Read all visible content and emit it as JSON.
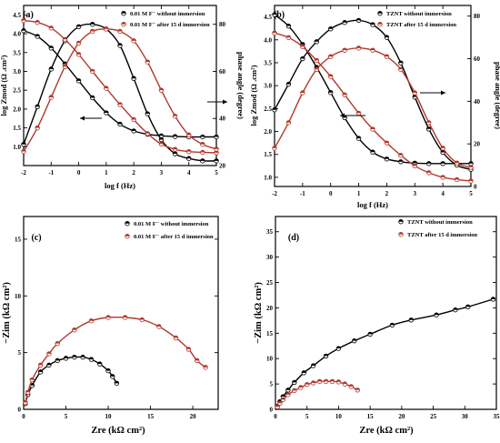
{
  "chart_data": [
    {
      "type": "line",
      "panel_label": "(a)",
      "xlabel": "log f (Hz)",
      "ylabel": "log Zmod (Ω .cm²)",
      "ylabel_right": "phase angle (degree)",
      "xlim": [
        -2,
        5
      ],
      "ylim": [
        0.5,
        4.75
      ],
      "ylim_right": [
        20,
        88
      ],
      "xticks": [
        "-2",
        "-1",
        "0",
        "1",
        "2",
        "3",
        "4",
        "5"
      ],
      "yticks": [
        "1.0",
        "1.5",
        "2.0",
        "2.5",
        "3.0",
        "3.5",
        "4.0",
        "4.5"
      ],
      "yticks_right": [
        "20",
        "40",
        "60",
        "80"
      ],
      "legend": [
        "0.01    M F⁻ without immersion",
        "0.01    M F⁻ after 15 d immersion"
      ],
      "legend_position": "top-right",
      "series": [
        {
          "name": "0.01    M F⁻ without immersion",
          "color": "#000000",
          "axis": "left",
          "x": [
            -2,
            -1.5,
            -1,
            -0.5,
            0,
            0.5,
            1,
            1.5,
            2,
            2.5,
            3,
            3.5,
            4,
            4.5,
            5
          ],
          "y": [
            4.08,
            3.93,
            3.62,
            3.2,
            2.75,
            2.3,
            1.9,
            1.6,
            1.42,
            1.33,
            1.29,
            1.27,
            1.26,
            1.26,
            1.26
          ]
        },
        {
          "name": "0.01    M F⁻ without immersion",
          "color": "#000000",
          "axis": "right",
          "x": [
            -2,
            -1.5,
            -1,
            -0.5,
            0,
            0.5,
            1,
            1.5,
            2,
            2.5,
            3,
            3.5,
            4,
            4.5,
            5
          ],
          "y": [
            29,
            45,
            61,
            73,
            79,
            80,
            78,
            71,
            57,
            42,
            31,
            25,
            23,
            22,
            22
          ]
        },
        {
          "name": "0.01    M F⁻ after 15 d immersion",
          "color": "#b03a2e",
          "axis": "left",
          "x": [
            -2,
            -1.5,
            -1,
            -0.5,
            0,
            0.5,
            1,
            1.5,
            2,
            2.5,
            3,
            3.5,
            4,
            4.5,
            5
          ],
          "y": [
            4.35,
            4.3,
            4.15,
            3.85,
            3.45,
            3.0,
            2.55,
            2.12,
            1.72,
            1.35,
            1.07,
            0.93,
            0.87,
            0.85,
            0.84
          ]
        },
        {
          "name": "0.01    M F⁻ after 15 d immersion",
          "color": "#b03a2e",
          "axis": "right",
          "x": [
            -2,
            -1.5,
            -1,
            -0.5,
            0,
            0.5,
            1,
            1.5,
            2,
            2.5,
            3,
            3.5,
            4,
            4.5,
            5
          ],
          "y": [
            26,
            36,
            49,
            62,
            72,
            77,
            78,
            77,
            73,
            64,
            52,
            41,
            33,
            29,
            27
          ]
        }
      ],
      "annotations": [
        "arrow-left-to-left-axis",
        "arrow-right-to-right-axis"
      ]
    },
    {
      "type": "line",
      "panel_label": "(b)",
      "xlabel": "log f (Hz)",
      "ylabel": "log Zmod (Ω .cm²)",
      "ylabel_right": "phase angle (degree)",
      "xlim": [
        -2,
        5
      ],
      "ylim": [
        0.8,
        4.75
      ],
      "ylim_right": [
        0,
        85
      ],
      "xticks": [
        "-2",
        "-1",
        "0",
        "1",
        "2",
        "3",
        "4",
        "5"
      ],
      "yticks": [
        "1.0",
        "1.5",
        "2.0",
        "2.5",
        "3.0",
        "3.5",
        "4.0",
        "4.5"
      ],
      "yticks_right": [
        "0",
        "20",
        "40",
        "60",
        "80"
      ],
      "legend": [
        "TZNT without immersion",
        "TZNT after 15 d immersion"
      ],
      "legend_position": "top-right",
      "series": [
        {
          "name": "TZNT without immersion",
          "color": "#000000",
          "axis": "left",
          "x": [
            -2,
            -1.5,
            -1,
            -0.5,
            0,
            0.5,
            1,
            1.5,
            2,
            2.5,
            3,
            3.5,
            4,
            4.5,
            5
          ],
          "y": [
            4.55,
            4.3,
            3.9,
            3.4,
            2.85,
            2.3,
            1.85,
            1.55,
            1.4,
            1.34,
            1.31,
            1.3,
            1.3,
            1.3,
            1.3
          ]
        },
        {
          "name": "TZNT without immersion",
          "color": "#000000",
          "axis": "right",
          "x": [
            -2,
            -1.5,
            -1,
            -0.5,
            0,
            0.5,
            1,
            1.5,
            2,
            2.5,
            3,
            3.5,
            4,
            4.5,
            5
          ],
          "y": [
            36,
            48,
            60,
            68,
            74,
            77,
            78,
            76,
            70,
            58,
            42,
            27,
            16,
            10,
            8
          ]
        },
        {
          "name": "TZNT after 15 d immersion",
          "color": "#b03a2e",
          "axis": "left",
          "x": [
            -2,
            -1.5,
            -1,
            -0.5,
            0,
            0.5,
            1,
            1.5,
            2,
            2.5,
            3,
            3.5,
            4,
            4.5,
            5
          ],
          "y": [
            4.15,
            4.05,
            3.85,
            3.55,
            3.2,
            2.8,
            2.4,
            2.05,
            1.75,
            1.48,
            1.25,
            1.1,
            1.0,
            0.95,
            0.92
          ]
        },
        {
          "name": "TZNT after 15 d immersion",
          "color": "#b03a2e",
          "axis": "right",
          "x": [
            -2,
            -1.5,
            -1,
            -0.5,
            0,
            0.5,
            1,
            1.5,
            2,
            2.5,
            3,
            3.5,
            4,
            4.5,
            5
          ],
          "y": [
            18,
            30,
            44,
            55,
            61,
            64,
            65,
            64,
            61,
            55,
            44,
            30,
            18,
            11,
            9
          ]
        }
      ],
      "annotations": [
        "arrow-right-to-right-axis",
        "arrow-left-to-left-axis"
      ]
    },
    {
      "type": "scatter",
      "panel_label": "(c)",
      "xlabel": "Zre (kΩ cm²)",
      "ylabel": "−Zim (kΩ cm²)",
      "xlim": [
        0,
        23
      ],
      "ylim": [
        0,
        17
      ],
      "xticks": [
        "0",
        "5",
        "10",
        "15",
        "20"
      ],
      "yticks": [
        "0",
        "5",
        "10",
        "15"
      ],
      "legend": [
        "0.01    M F⁻ without immersion",
        "0.01    M F⁻ after 15 d immersion"
      ],
      "legend_position": "top-right",
      "series": [
        {
          "name": "0.01    M F⁻ without immersion",
          "color": "#000000",
          "x": [
            0.2,
            0.5,
            1,
            2,
            3,
            4,
            5,
            6,
            7,
            8,
            9,
            10,
            10.5,
            11
          ],
          "y": [
            0.5,
            1.3,
            2.1,
            3.3,
            3.9,
            4.3,
            4.5,
            4.6,
            4.6,
            4.4,
            4.0,
            3.4,
            2.9,
            2.3
          ]
        },
        {
          "name": "0.01    M F⁻ after 15 d immersion",
          "color": "#b03a2e",
          "x": [
            0.2,
            0.5,
            1,
            2,
            3,
            4,
            6,
            8,
            10,
            12,
            14,
            16,
            18,
            19.5,
            20.5,
            21.5
          ],
          "y": [
            0.6,
            1.5,
            2.6,
            3.9,
            4.9,
            5.8,
            7.0,
            7.8,
            8.1,
            8.1,
            7.9,
            7.3,
            6.3,
            5.3,
            4.3,
            3.7
          ]
        }
      ]
    },
    {
      "type": "scatter",
      "panel_label": "(d)",
      "xlabel": "Zre (kΩ cm²)",
      "ylabel": "−Zim (kΩ cm²)",
      "xlim": [
        0,
        35
      ],
      "ylim": [
        0,
        38
      ],
      "xticks": [
        "0",
        "5",
        "10",
        "15",
        "20",
        "25",
        "30",
        "35"
      ],
      "yticks": [
        "0",
        "5",
        "10",
        "15",
        "20",
        "25",
        "30",
        "35"
      ],
      "legend": [
        "TZNT without immersion",
        "TZNT after 15 d immersion"
      ],
      "legend_position": "top-right",
      "series": [
        {
          "name": "TZNT without immersion",
          "color": "#000000",
          "x": [
            0.3,
            0.7,
            1.2,
            2,
            3,
            4.5,
            6,
            8,
            10,
            12.5,
            15,
            18.5,
            21.5,
            25.5,
            28.5,
            30.5,
            34.5
          ],
          "y": [
            0.6,
            1.5,
            2.5,
            3.8,
            5.3,
            7.2,
            8.6,
            10.5,
            12,
            13.5,
            14.8,
            16.6,
            17.6,
            18.6,
            19.6,
            20.2,
            21.7
          ]
        },
        {
          "name": "TZNT after 15 d immersion",
          "color": "#b03a2e",
          "x": [
            0.3,
            0.7,
            1.2,
            2,
            3,
            4,
            5,
            6,
            7,
            8,
            9,
            10,
            11,
            12,
            13
          ],
          "y": [
            0.5,
            1.2,
            1.9,
            2.9,
            3.7,
            4.3,
            4.9,
            5.2,
            5.5,
            5.5,
            5.5,
            5.4,
            5.0,
            4.5,
            3.8
          ]
        }
      ]
    }
  ]
}
